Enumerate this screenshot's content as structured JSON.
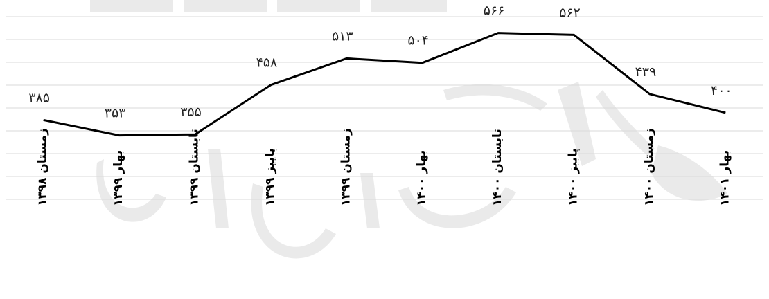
{
  "chart_data": {
    "type": "line",
    "categories": [
      "زمستان ۱۳۹۸",
      "بهار ۱۳۹۹",
      "تابستان ۱۳۹۹",
      "پاییز ۱۳۹۹",
      "زمستان ۱۳۹۹",
      "بهار ۱۴۰۰",
      "تابستان ۱۴۰۰",
      "پاییز ۱۴۰۰",
      "زمستان ۱۴۰۰",
      "بهار ۱۴۰۱"
    ],
    "values": [
      385,
      353,
      355,
      458,
      513,
      504,
      566,
      562,
      439,
      400
    ],
    "value_labels": [
      "۳۸۵",
      "۳۵۳",
      "۳۵۵",
      "۴۵۸",
      "۵۱۳",
      "۵۰۴",
      "۵۶۶",
      "۵۶۲",
      "۴۳۹",
      "۴۰۰"
    ],
    "ylim": [
      220,
      600
    ],
    "grid": true,
    "line_color": "#000000"
  },
  "watermark": "مرکز آمار ایران"
}
